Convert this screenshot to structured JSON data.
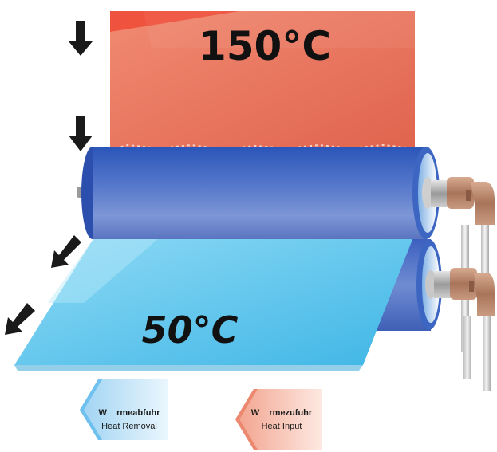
{
  "hot_temperature": "150°C",
  "cool_temperature": "50°C",
  "legend": {
    "heat_removal": {
      "title": "W    rmeabfuhr",
      "subtitle": "Heat Removal"
    },
    "heat_input": {
      "title": "W    rmezufuhr",
      "subtitle": "Heat Input"
    }
  },
  "colors": {
    "hot_film": "#e8705a",
    "cool_film": "#5cc6ea",
    "roller": "#5a78c8",
    "arrow": "#1a1a1a"
  },
  "icons": [
    "down-arrow-icon",
    "diagonal-arrow-icon",
    "fitting-icon",
    "left-arrow-icon"
  ]
}
